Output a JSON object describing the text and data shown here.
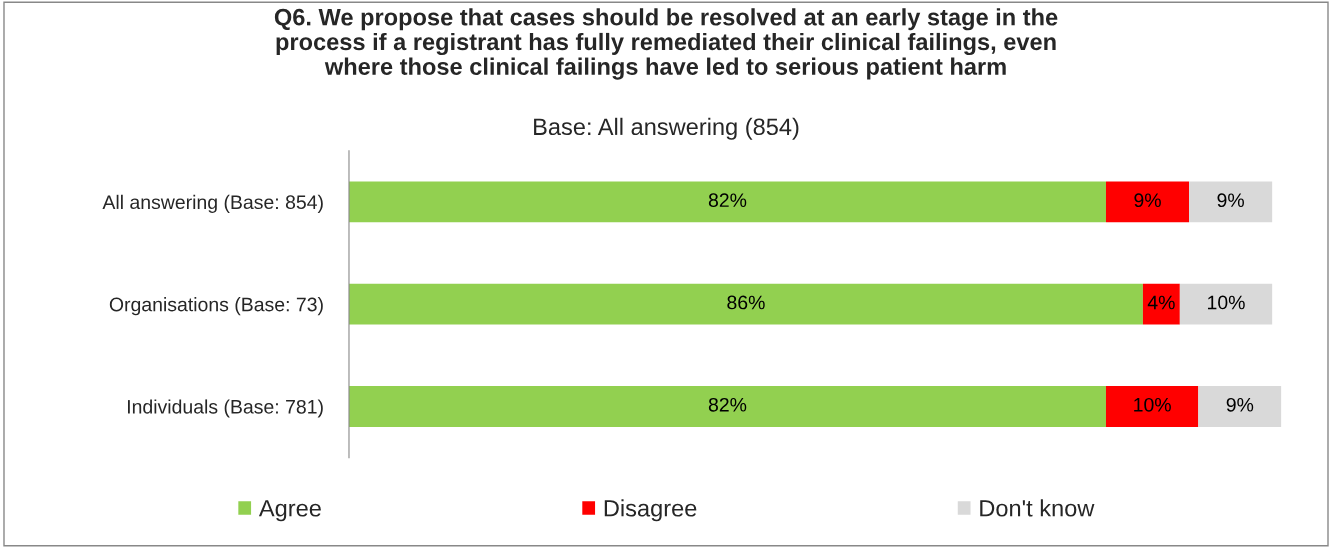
{
  "chart_data": {
    "type": "bar",
    "orientation": "horizontal",
    "stacked": true,
    "title": "Q6. We propose that cases should be resolved at an early stage in the\nprocess if a registrant has fully remediated their clinical failings, even\nwhere those clinical failings have led to serious patient harm",
    "subtitle": "Base: All answering (854)",
    "categories": [
      "All answering (Base: 854)",
      "Organisations (Base: 73)",
      "Individuals (Base: 781)"
    ],
    "series": [
      {
        "name": "Agree",
        "color": "#92d050",
        "values": [
          82,
          86,
          82
        ],
        "value_labels": [
          "82%",
          "86%",
          "82%"
        ]
      },
      {
        "name": "Disagree",
        "color": "#ff0000",
        "values": [
          9,
          4,
          10
        ],
        "value_labels": [
          "9%",
          "4%",
          "10%"
        ]
      },
      {
        "name": "Don't know",
        "color": "#d9d9d9",
        "values": [
          9,
          10,
          9
        ],
        "value_labels": [
          "9%",
          "10%",
          "9%"
        ]
      }
    ],
    "legend": "bottom",
    "grid": false
  }
}
